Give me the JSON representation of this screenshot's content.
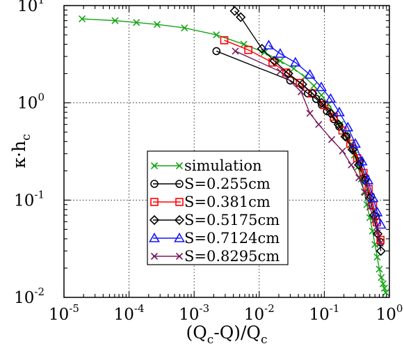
{
  "chart_data": {
    "type": "scatter",
    "x_scale": "log",
    "y_scale": "log",
    "xlim": [
      1e-05,
      1
    ],
    "ylim": [
      0.01,
      10
    ],
    "grid": true,
    "grid_style": "dotted",
    "legend_placement": "lower-center",
    "xlabel": {
      "base": "(Q",
      "sub1": "c",
      "mid": "-Q)/Q",
      "sub2": "c"
    },
    "ylabel": {
      "base": "κ·h",
      "sub": "c"
    },
    "x_ticks": [
      {
        "value": 1e-05,
        "base": "10",
        "exp": "-5"
      },
      {
        "value": 0.0001,
        "base": "10",
        "exp": "-4"
      },
      {
        "value": 0.001,
        "base": "10",
        "exp": "-3"
      },
      {
        "value": 0.01,
        "base": "10",
        "exp": "-2"
      },
      {
        "value": 0.1,
        "base": "10",
        "exp": "-1"
      },
      {
        "value": 1,
        "base": "10",
        "exp": "0"
      }
    ],
    "y_ticks": [
      {
        "value": 0.01,
        "base": "10",
        "exp": "-2"
      },
      {
        "value": 0.1,
        "base": "10",
        "exp": "-1"
      },
      {
        "value": 1,
        "base": "10",
        "exp": "0"
      },
      {
        "value": 10,
        "base": "10",
        "exp": "1"
      }
    ],
    "series": [
      {
        "name": "simulation",
        "color": "#15a515",
        "marker": "x",
        "x": [
          1.9e-05,
          6.1e-05,
          0.00013,
          0.00027,
          0.00071,
          0.0022,
          0.0058,
          0.012,
          0.021,
          0.034,
          0.05,
          0.069,
          0.09,
          0.115,
          0.145,
          0.175,
          0.21,
          0.25,
          0.29,
          0.33,
          0.37,
          0.41,
          0.45,
          0.5,
          0.55,
          0.6,
          0.65,
          0.7,
          0.75,
          0.8,
          0.84,
          0.88
        ],
        "y": [
          7.3,
          7.0,
          6.7,
          6.4,
          5.9,
          5.0,
          4.0,
          3.3,
          2.7,
          2.25,
          1.85,
          1.5,
          1.2,
          0.97,
          0.77,
          0.6,
          0.47,
          0.37,
          0.29,
          0.22,
          0.165,
          0.122,
          0.09,
          0.066,
          0.048,
          0.035,
          0.026,
          0.0195,
          0.016,
          0.0138,
          0.0124,
          0.0112
        ]
      },
      {
        "name": "S=0.255cm",
        "color": "#000000",
        "marker": "circle",
        "x": [
          0.0022,
          0.03,
          0.056,
          0.075,
          0.092,
          0.11,
          0.14,
          0.17,
          0.22,
          0.28,
          0.35,
          0.43,
          0.52,
          0.62,
          0.73
        ],
        "y": [
          3.4,
          1.7,
          1.25,
          1.1,
          0.95,
          0.82,
          0.68,
          0.57,
          0.45,
          0.34,
          0.25,
          0.17,
          0.11,
          0.068,
          0.037
        ]
      },
      {
        "name": "S=0.381cm",
        "color": "#ff0000",
        "marker": "square",
        "x": [
          0.0029,
          0.0068,
          0.016,
          0.026,
          0.042,
          0.065,
          0.1,
          0.14,
          0.19,
          0.25,
          0.32,
          0.4,
          0.48,
          0.56,
          0.64,
          0.73
        ],
        "y": [
          4.4,
          3.5,
          2.6,
          2.05,
          1.6,
          1.25,
          0.95,
          0.72,
          0.52,
          0.38,
          0.27,
          0.19,
          0.13,
          0.088,
          0.059,
          0.039
        ]
      },
      {
        "name": "S=0.5175cm",
        "color": "#000000",
        "marker": "diamond",
        "x": [
          0.0042,
          0.0052,
          0.011,
          0.017,
          0.028,
          0.046,
          0.066,
          0.091,
          0.125,
          0.165,
          0.21,
          0.27,
          0.34,
          0.42,
          0.5,
          0.58,
          0.66,
          0.74
        ],
        "y": [
          8.8,
          7.6,
          3.6,
          2.7,
          2.0,
          1.55,
          1.25,
          1.0,
          0.78,
          0.6,
          0.45,
          0.33,
          0.23,
          0.16,
          0.105,
          0.07,
          0.045,
          0.03
        ]
      },
      {
        "name": "S=0.7124cm",
        "color": "#1414ff",
        "marker": "triangle",
        "x": [
          0.014,
          0.021,
          0.036,
          0.06,
          0.09,
          0.125,
          0.17,
          0.23,
          0.3,
          0.38,
          0.47,
          0.56,
          0.65,
          0.74
        ],
        "y": [
          3.9,
          3.2,
          2.6,
          1.95,
          1.45,
          1.1,
          0.8,
          0.56,
          0.38,
          0.25,
          0.16,
          0.105,
          0.075,
          0.056
        ]
      },
      {
        "name": "S=0.8295cm",
        "color": "#7a1a5a",
        "marker": "x",
        "x": [
          0.0043,
          0.021,
          0.044,
          0.06,
          0.082,
          0.13,
          0.19,
          0.26,
          0.34,
          0.42,
          0.5,
          0.58,
          0.65,
          0.72
        ],
        "y": [
          3.4,
          2.1,
          1.3,
          0.78,
          0.6,
          0.42,
          0.32,
          0.23,
          0.17,
          0.12,
          0.085,
          0.062,
          0.046,
          0.036
        ]
      }
    ]
  }
}
